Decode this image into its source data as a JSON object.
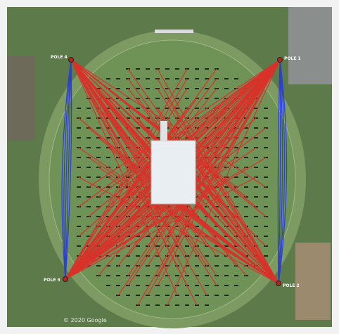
{
  "poles": [
    {
      "label": "POLE 4"
    },
    {
      "label": "POLE 1"
    },
    {
      "label": "POLE 3"
    },
    {
      "label": "POLE 2"
    }
  ],
  "attribution": "© 2020 Google"
}
